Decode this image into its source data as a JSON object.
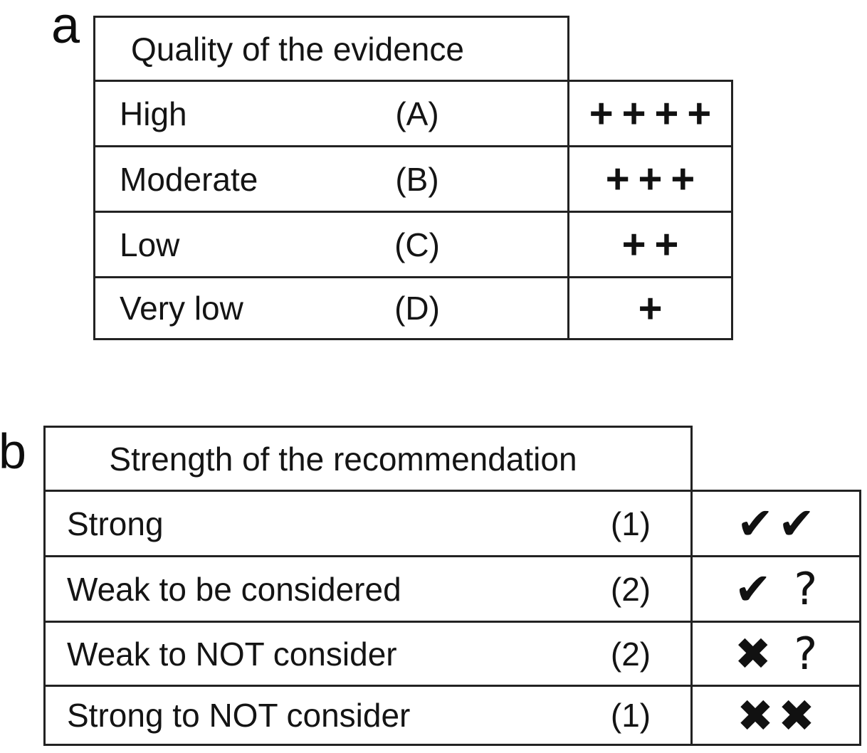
{
  "panels": [
    {
      "label": "a",
      "header": "Quality of the evidence",
      "rows": [
        {
          "label": "High",
          "code": "(A)",
          "symbol": "++++"
        },
        {
          "label": "Moderate",
          "code": "(B)",
          "symbol": "+++"
        },
        {
          "label": "Low",
          "code": "(C)",
          "symbol": "++"
        },
        {
          "label": "Very low",
          "code": "(D)",
          "symbol": "+"
        }
      ]
    },
    {
      "label": "b",
      "header": "Strength of the recommendation",
      "rows": [
        {
          "label": "Strong",
          "code": "(1)",
          "symbol": "✔✔"
        },
        {
          "label": "Weak to be considered",
          "code": "(2)",
          "symbol": "✔ ?"
        },
        {
          "label": "Weak to NOT consider",
          "code": "(2)",
          "symbol": "✖ ?"
        },
        {
          "label": "Strong to NOT consider",
          "code": "(1)",
          "symbol": "✖✖"
        }
      ]
    }
  ],
  "colors": {
    "ink": "#141414",
    "border": "#222222",
    "background": "#ffffff"
  }
}
